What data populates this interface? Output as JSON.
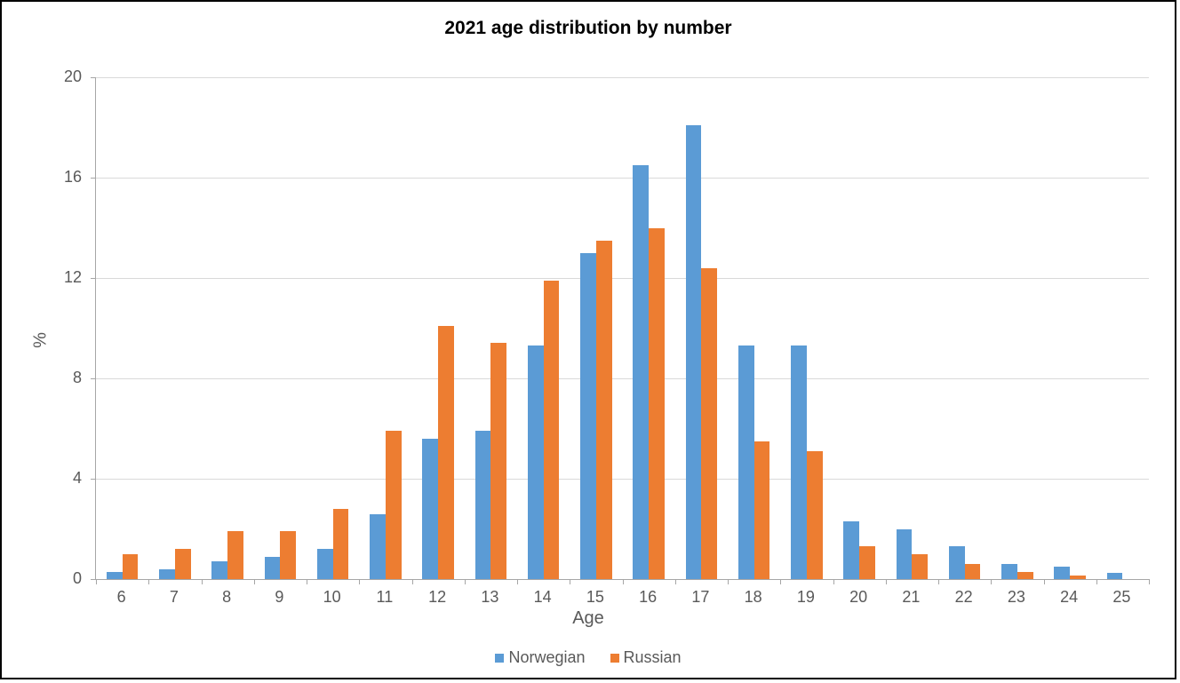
{
  "chart": {
    "type": "bar",
    "title": "2021 age distribution by number",
    "title_fontsize": 21,
    "title_fontweight": "bold",
    "title_color": "#000000",
    "xlabel": "Age",
    "ylabel": "%",
    "axis_label_fontsize": 20,
    "axis_label_color": "#595959",
    "tick_label_fontsize": 18,
    "tick_label_color": "#595959",
    "background_color": "#ffffff",
    "border_color": "#000000",
    "border_width": 2,
    "grid_color": "#d9d9d9",
    "axis_line_color": "#a6a6a6",
    "ylim": [
      0,
      20
    ],
    "ytick_step": 4,
    "yticks": [
      0,
      4,
      8,
      12,
      16,
      20
    ],
    "categories": [
      "6",
      "7",
      "8",
      "9",
      "10",
      "11",
      "12",
      "13",
      "14",
      "15",
      "16",
      "17",
      "18",
      "19",
      "20",
      "21",
      "22",
      "23",
      "24",
      "25"
    ],
    "series": [
      {
        "name": "Norwegian",
        "color": "#5b9bd5",
        "values": [
          0.3,
          0.4,
          0.7,
          0.9,
          1.2,
          2.6,
          5.6,
          5.9,
          9.3,
          13.0,
          16.5,
          18.1,
          9.3,
          9.3,
          2.3,
          2.0,
          1.3,
          0.6,
          0.5,
          0.25
        ]
      },
      {
        "name": "Russian",
        "color": "#ed7d31",
        "values": [
          1.0,
          1.2,
          1.9,
          1.9,
          2.8,
          5.9,
          10.1,
          9.4,
          11.9,
          13.5,
          14.0,
          12.4,
          5.5,
          5.1,
          1.3,
          1.0,
          0.6,
          0.3,
          0.15,
          0.0
        ]
      }
    ],
    "bar_group_width_ratio": 0.6,
    "legend_fontsize": 18,
    "legend_color": "#595959",
    "legend_swatch_size": 10
  }
}
